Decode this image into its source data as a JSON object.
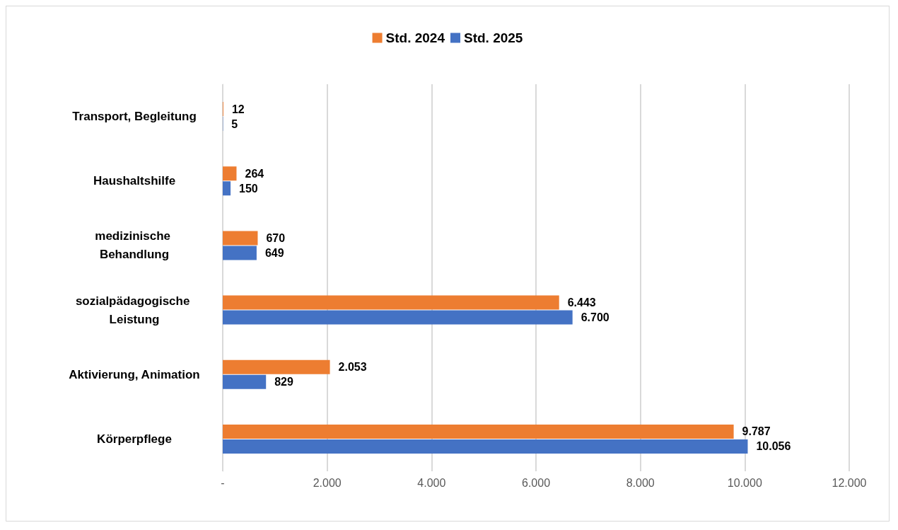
{
  "chart_data": {
    "type": "bar",
    "orientation": "horizontal",
    "categories": [
      "Transport, Begleitung",
      "Haushaltshilfe",
      "medizinische Behandlung",
      "sozialpädagogische Leistung",
      "Aktivierung, Animation",
      "Körperpflege"
    ],
    "series": [
      {
        "name": "Std. 2024",
        "color": "#ed7d31",
        "values": [
          12,
          264,
          670,
          6443,
          2053,
          9787
        ],
        "value_labels": [
          "12",
          "264",
          "670",
          "6.443",
          "2.053",
          "9.787"
        ]
      },
      {
        "name": "Std. 2025",
        "color": "#4472c4",
        "values": [
          5,
          150,
          649,
          6700,
          829,
          10056
        ],
        "value_labels": [
          "5",
          "150",
          "649",
          "6.700",
          "829",
          "10.056"
        ]
      }
    ],
    "xlim": [
      0,
      12000
    ],
    "xticks": [
      {
        "value": 0,
        "label": "-"
      },
      {
        "value": 2000,
        "label": "2.000"
      },
      {
        "value": 4000,
        "label": "4.000"
      },
      {
        "value": 6000,
        "label": "6.000"
      },
      {
        "value": 8000,
        "label": "8.000"
      },
      {
        "value": 10000,
        "label": "10.000"
      },
      {
        "value": 12000,
        "label": "12.000"
      }
    ],
    "grid": "x",
    "legend": "top"
  }
}
